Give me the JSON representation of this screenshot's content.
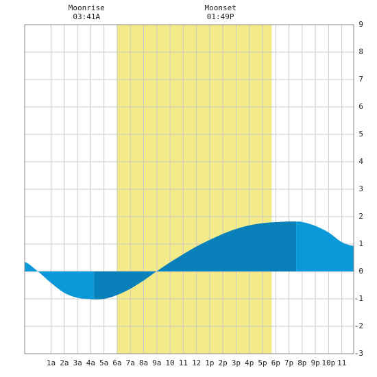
{
  "chart_data": {
    "type": "area",
    "title": "",
    "xlabel": "",
    "ylabel": "",
    "x_unit": "hours since midnight",
    "xlim": [
      -1.0,
      23.9
    ],
    "ylim": [
      -3,
      9
    ],
    "x_ticks": [
      {
        "x": 1,
        "label": "1a"
      },
      {
        "x": 2,
        "label": "2a"
      },
      {
        "x": 3,
        "label": "3a"
      },
      {
        "x": 4,
        "label": "4a"
      },
      {
        "x": 5,
        "label": "5a"
      },
      {
        "x": 6,
        "label": "6a"
      },
      {
        "x": 7,
        "label": "7a"
      },
      {
        "x": 8,
        "label": "8a"
      },
      {
        "x": 9,
        "label": "9a"
      },
      {
        "x": 10,
        "label": "10"
      },
      {
        "x": 11,
        "label": "11"
      },
      {
        "x": 12,
        "label": "12"
      },
      {
        "x": 13,
        "label": "1p"
      },
      {
        "x": 14,
        "label": "2p"
      },
      {
        "x": 15,
        "label": "3p"
      },
      {
        "x": 16,
        "label": "4p"
      },
      {
        "x": 17,
        "label": "5p"
      },
      {
        "x": 18,
        "label": "6p"
      },
      {
        "x": 19,
        "label": "7p"
      },
      {
        "x": 20,
        "label": "8p"
      },
      {
        "x": 21,
        "label": "9p"
      },
      {
        "x": 22,
        "label": "10p"
      },
      {
        "x": 23,
        "label": "11"
      }
    ],
    "y_ticks": [
      "-3",
      "-2",
      "-1",
      "0",
      "1",
      "2",
      "3",
      "4",
      "5",
      "6",
      "7",
      "8",
      "9"
    ],
    "grid": true,
    "daylight": {
      "start": 5.97,
      "end": 17.7
    },
    "moon_events": [
      {
        "name": "Moonrise",
        "time": "03:41A",
        "x": 3.68
      },
      {
        "name": "Moonset",
        "time": "01:49P",
        "x": 13.82
      }
    ],
    "extremes": [
      {
        "type": "low",
        "x": 4.25,
        "y": -1.02
      },
      {
        "type": "high",
        "x": 19.55,
        "y": 1.82
      }
    ],
    "series": [
      {
        "x": [
          -1.0,
          0,
          1,
          2,
          3,
          4,
          4.25,
          5,
          6,
          7,
          8,
          9,
          10,
          11,
          12,
          13,
          14,
          15,
          16,
          17,
          18,
          19,
          19.55,
          20,
          21,
          22,
          23,
          23.9
        ],
        "y": [
          0.35,
          0.0,
          -0.42,
          -0.78,
          -0.96,
          -1.01,
          -1.02,
          -1.0,
          -0.86,
          -0.63,
          -0.33,
          0.01,
          0.33,
          0.63,
          0.91,
          1.15,
          1.37,
          1.55,
          1.68,
          1.76,
          1.8,
          1.82,
          1.82,
          1.8,
          1.66,
          1.42,
          1.07,
          0.93
        ]
      }
    ],
    "colors": {
      "daylight": "#f3eb8a",
      "grid": "#c8c8c8",
      "frame": "#8a8a8a",
      "tide_light": "#0a98d8",
      "tide_dark": "#0980b9"
    }
  }
}
